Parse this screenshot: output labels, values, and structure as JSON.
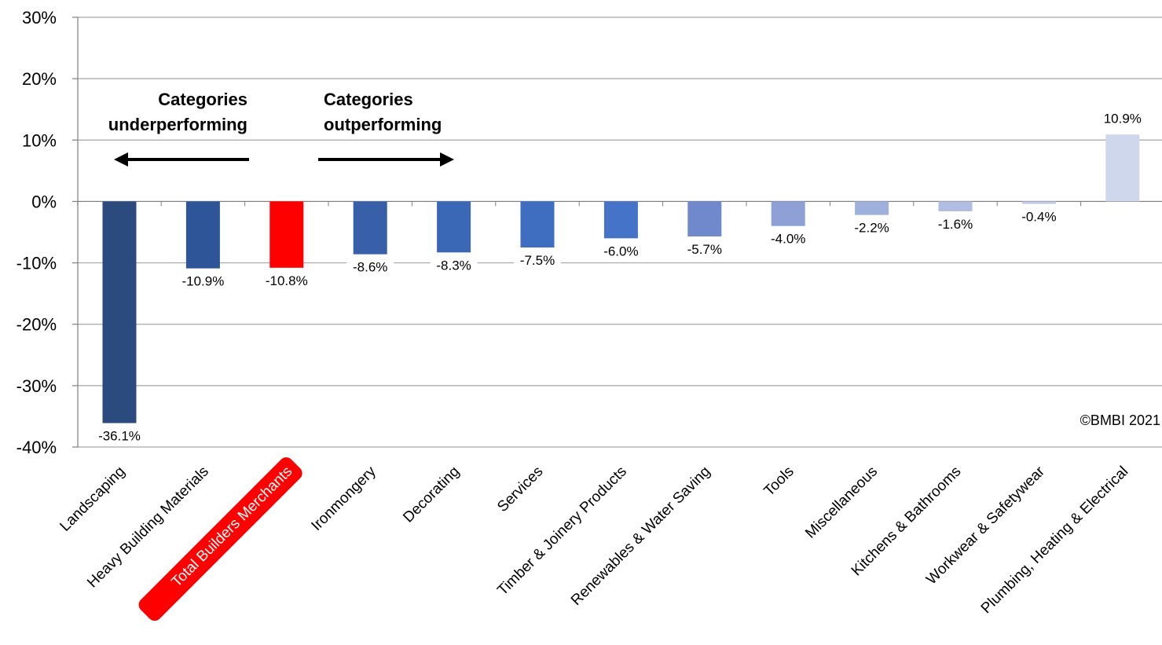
{
  "chart_data": {
    "type": "bar",
    "categories": [
      "Landscaping",
      "Heavy Building Materials",
      "Total Builders Merchants",
      "Ironmongery",
      "Decorating",
      "Services",
      "Timber & Joinery Products",
      "Renewables & Water Saving",
      "Tools",
      "Miscellaneous",
      "Kitchens & Bathrooms",
      "Workwear & Safetywear",
      "Plumbing, Heating & Electrical"
    ],
    "values": [
      -36.1,
      -10.9,
      -10.8,
      -8.6,
      -8.3,
      -7.5,
      -6.0,
      -5.7,
      -4.0,
      -2.2,
      -1.6,
      -0.4,
      10.9
    ],
    "data_labels": [
      "-36.1%",
      "-10.9%",
      "-10.8%",
      "-8.6%",
      "-8.3%",
      "-7.5%",
      "-6.0%",
      "-5.7%",
      "-4.0%",
      "-2.2%",
      "-1.6%",
      "-0.4%",
      "10.9%"
    ],
    "bar_colors": [
      "#2b4a7e",
      "#2e5597",
      "#ff0000",
      "#3760a8",
      "#3b68b6",
      "#3f6ec0",
      "#4573c8",
      "#7089cc",
      "#8ea0d6",
      "#9fb0dd",
      "#b1bee3",
      "#c0cbe9",
      "#cfd7ec"
    ],
    "highlight_index": 2,
    "highlight_color": "#ff0000",
    "ylim": [
      -40,
      30
    ],
    "yticks": [
      30,
      20,
      10,
      0,
      -10,
      -20,
      -30,
      -40
    ],
    "ytick_labels": [
      "30%",
      "20%",
      "10%",
      "0%",
      "-10%",
      "-20%",
      "-30%",
      "-40%"
    ],
    "grid": true,
    "grid_color": "#a6a6a6",
    "annotations": {
      "left": [
        "Categories",
        "underperforming"
      ],
      "right": [
        "Categories",
        "outperforming"
      ]
    },
    "copyright": "©BMBI 2021",
    "title": "",
    "xlabel": "",
    "ylabel": ""
  }
}
